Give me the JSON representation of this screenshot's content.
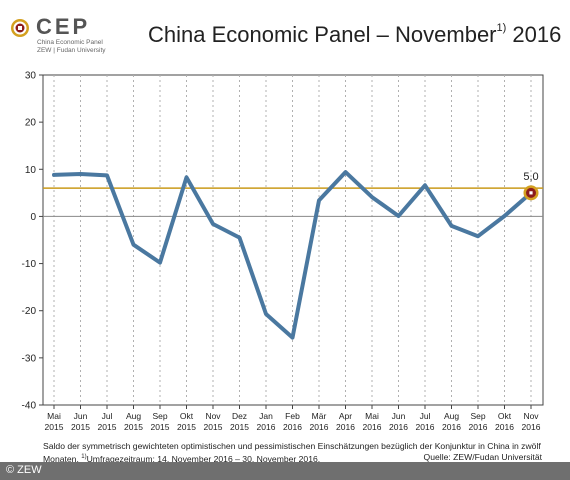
{
  "logo": {
    "wordmark": "CEP",
    "subtitle_line1": "China Economic Panel",
    "subtitle_line2": "ZEW | Fudan University"
  },
  "title": {
    "main": "China Economic Panel – November",
    "footnote_mark": "1)",
    "year": "2016"
  },
  "chart_data": {
    "type": "line",
    "categories": [
      [
        "Mai",
        "2015"
      ],
      [
        "Jun",
        "2015"
      ],
      [
        "Jul",
        "2015"
      ],
      [
        "Aug",
        "2015"
      ],
      [
        "Sep",
        "2015"
      ],
      [
        "Okt",
        "2015"
      ],
      [
        "Nov",
        "2015"
      ],
      [
        "Dez",
        "2015"
      ],
      [
        "Jan",
        "2016"
      ],
      [
        "Feb",
        "2016"
      ],
      [
        "Mär",
        "2016"
      ],
      [
        "Apr",
        "2016"
      ],
      [
        "Mai",
        "2016"
      ],
      [
        "Jun",
        "2016"
      ],
      [
        "Jul",
        "2016"
      ],
      [
        "Aug",
        "2016"
      ],
      [
        "Sep",
        "2016"
      ],
      [
        "Okt",
        "2016"
      ],
      [
        "Nov",
        "2016"
      ]
    ],
    "series": [
      {
        "values": [
          8.8,
          9.0,
          8.7,
          -6.0,
          -9.8,
          8.3,
          -1.6,
          -4.5,
          -20.7,
          -25.7,
          3.4,
          9.4,
          4.1,
          0.1,
          6.6,
          -2.0,
          -4.2,
          0.1,
          5.0
        ]
      }
    ],
    "reference_line": 6.0,
    "last_value_label": "5,0",
    "ylim": [
      -40,
      30
    ],
    "yticks": [
      "30",
      "20",
      "10",
      "0",
      "-10",
      "-20",
      "-30",
      "-40"
    ],
    "ytick_values": [
      30,
      20,
      10,
      0,
      -10,
      -20,
      -30,
      -40
    ],
    "grid": "vertical dotted",
    "colors": {
      "line": "#4a78a0",
      "reference": "#c99a1a",
      "marker_ring": "#d4a020",
      "marker_fill": "#8c1c1c",
      "zero_line": "#888888",
      "grid": "#b0b0b0"
    }
  },
  "caption": {
    "text": "Saldo der symmetrisch gewichteten optimistischen und pessimistischen Einschätzungen bezüglich der Konjunktur in China in zwölf Monaten.",
    "footnote_mark": "1)",
    "survey_period": "Umfragezeitraum: 14. November 2016 – 30. November 2016.",
    "source": "Quelle: ZEW/Fudan Universität"
  },
  "footer": {
    "copyright": "© ZEW"
  }
}
